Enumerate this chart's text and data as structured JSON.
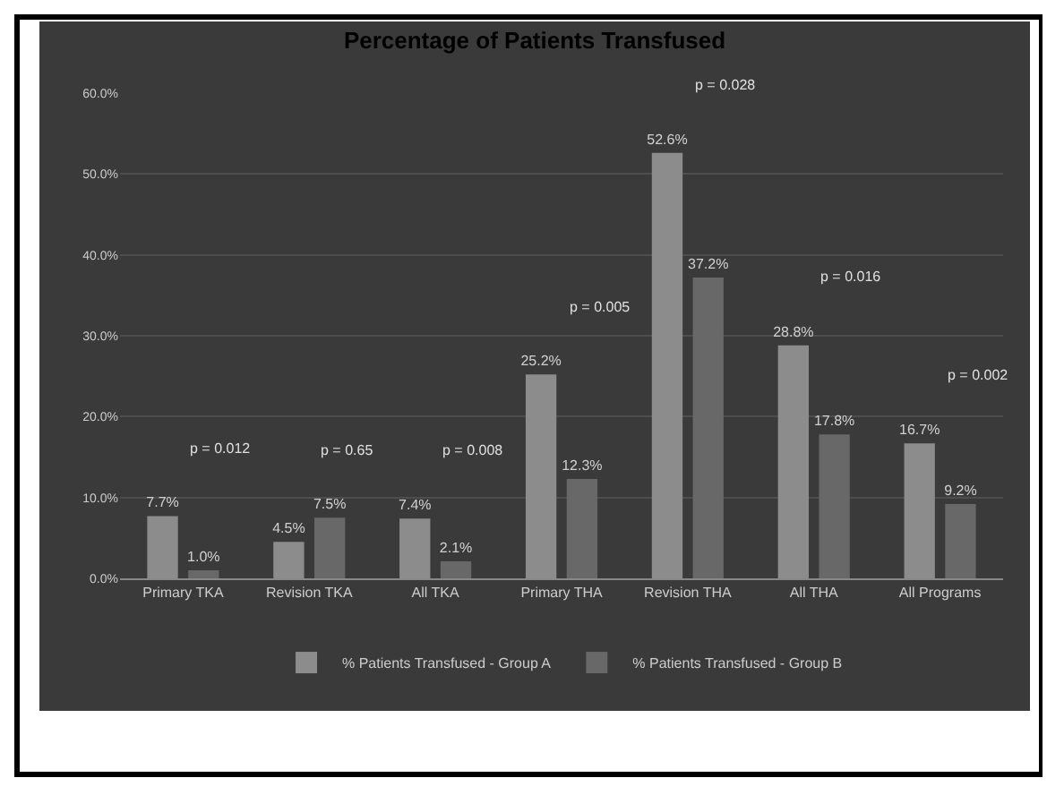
{
  "chart_data": {
    "type": "bar",
    "title": "Percentage of Patients Transfused",
    "categories": [
      "Primary TKA",
      "Revision TKA",
      "All TKA",
      "Primary THA",
      "Revision THA",
      "All THA",
      "All Programs"
    ],
    "series": [
      {
        "name": "% Patients Transfused - Group A",
        "color": "#8c8c8c",
        "values": [
          7.7,
          4.5,
          7.4,
          25.2,
          52.6,
          28.8,
          16.7
        ],
        "value_labels": [
          "7.7%",
          "4.5%",
          "7.4%",
          "25.2%",
          "52.6%",
          "28.8%",
          "16.7%"
        ]
      },
      {
        "name": "% Patients Transfused - Group B",
        "color": "#686868",
        "values": [
          1.0,
          7.5,
          2.1,
          12.3,
          37.2,
          17.8,
          9.2
        ],
        "value_labels": [
          "1.0%",
          "7.5%",
          "2.1%",
          "12.3%",
          "37.2%",
          "17.8%",
          "9.2%"
        ]
      }
    ],
    "ylim": [
      0,
      60
    ],
    "yticks": [
      {
        "value": 0,
        "label": "0.0%"
      },
      {
        "value": 10,
        "label": "10.0%"
      },
      {
        "value": 20,
        "label": "20.0%"
      },
      {
        "value": 30,
        "label": "30.0%"
      },
      {
        "value": 40,
        "label": "40.0%"
      },
      {
        "value": 50,
        "label": "50.0%"
      },
      {
        "value": 60,
        "label": "60.0%"
      }
    ],
    "grid": "y",
    "legend": "bottom",
    "annotations": [
      "p = 0.012",
      "p = 0.65",
      "p = 0.008",
      "p = 0.005",
      "p = 0.028",
      "p = 0.016",
      "p = 0.002"
    ]
  }
}
